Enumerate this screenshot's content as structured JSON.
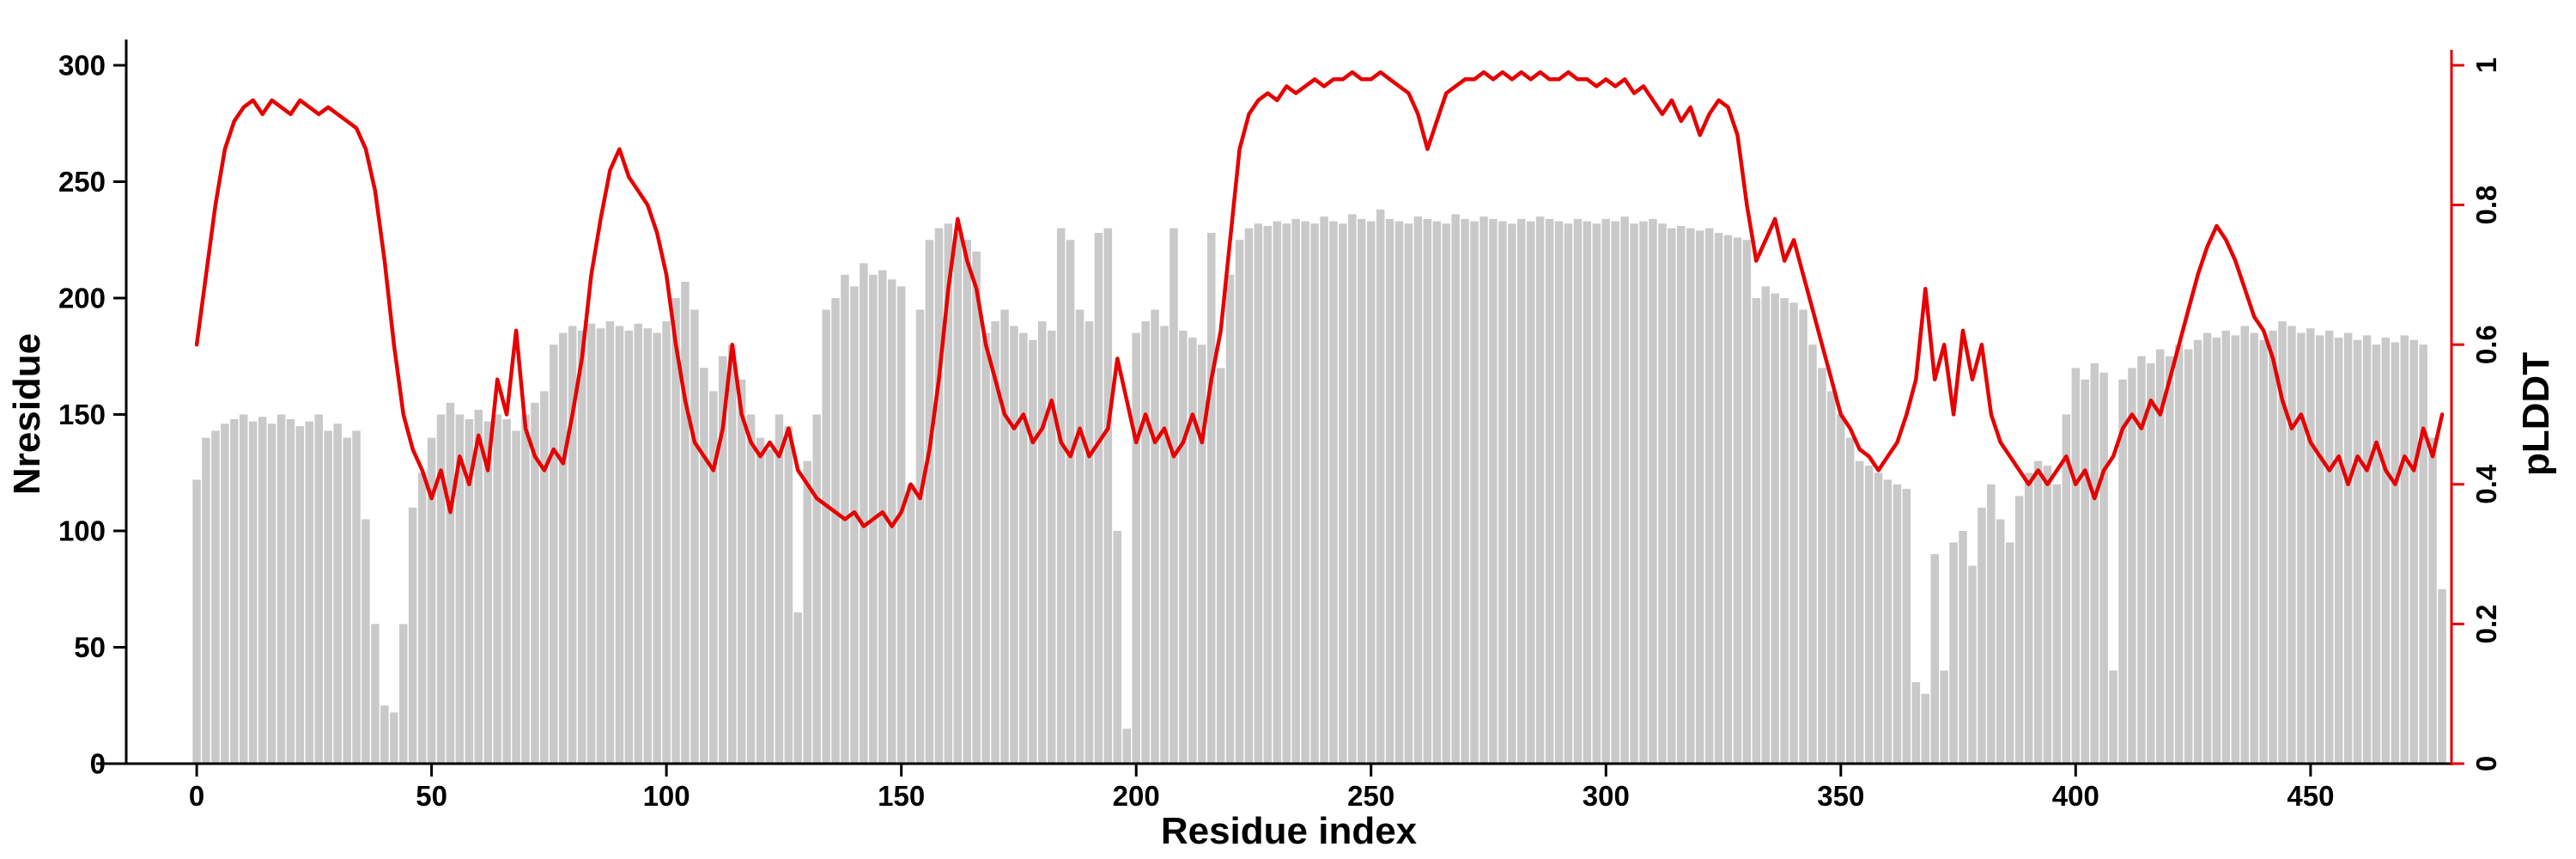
{
  "figure": {
    "background": "#ffffff",
    "bar_color": "#c9c9c9",
    "line_color": "#e60000",
    "axis_color": "#000000"
  },
  "chart_data": {
    "type": "bar+line",
    "title": "",
    "xlabel": "Residue index",
    "ylabel_left": "Nresidue",
    "ylabel_right": "pLDDT",
    "legend": "none",
    "grid": false,
    "x_axis": {
      "min": -15,
      "max": 480,
      "ticks": [
        0,
        50,
        100,
        150,
        200,
        250,
        300,
        350,
        400,
        450
      ]
    },
    "y_left_axis": {
      "min": 0,
      "max": 300,
      "ticks": [
        0,
        50,
        100,
        150,
        200,
        250,
        300
      ],
      "color": "#000000"
    },
    "y_right_axis": {
      "min": 0,
      "max": 1,
      "ticks": [
        0,
        0.2,
        0.4,
        0.6,
        0.8,
        1
      ],
      "tick_labels": [
        "0",
        "0.2",
        "0.4",
        "0.6",
        "0.8",
        "1"
      ],
      "color": "#e60000"
    },
    "x": {
      "start": 0,
      "step": 2,
      "count": 240
    },
    "series": [
      {
        "name": "Nresidue",
        "type": "bar",
        "axis": "left",
        "color": "#c9c9c9",
        "values": [
          122,
          140,
          143,
          146,
          148,
          150,
          147,
          149,
          146,
          150,
          148,
          145,
          147,
          150,
          143,
          146,
          140,
          143,
          105,
          60,
          25,
          22,
          60,
          110,
          125,
          140,
          150,
          155,
          150,
          148,
          152,
          147,
          150,
          148,
          143,
          150,
          155,
          160,
          180,
          185,
          188,
          186,
          189,
          187,
          190,
          188,
          186,
          189,
          187,
          185,
          190,
          200,
          207,
          195,
          170,
          160,
          175,
          180,
          165,
          150,
          140,
          135,
          150,
          145,
          65,
          130,
          150,
          195,
          200,
          210,
          205,
          215,
          210,
          212,
          208,
          205,
          120,
          195,
          225,
          230,
          232,
          228,
          225,
          220,
          185,
          190,
          195,
          188,
          185,
          182,
          190,
          186,
          230,
          225,
          195,
          190,
          228,
          230,
          100,
          15,
          185,
          190,
          195,
          188,
          230,
          186,
          183,
          180,
          228,
          170,
          210,
          225,
          230,
          232,
          231,
          233,
          232,
          234,
          233,
          232,
          235,
          233,
          232,
          236,
          234,
          233,
          238,
          234,
          233,
          232,
          235,
          234,
          233,
          232,
          236,
          234,
          233,
          235,
          234,
          233,
          232,
          234,
          233,
          235,
          234,
          233,
          232,
          234,
          233,
          232,
          234,
          233,
          235,
          232,
          233,
          234,
          232,
          230,
          231,
          230,
          229,
          230,
          228,
          227,
          226,
          225,
          200,
          205,
          202,
          200,
          198,
          195,
          180,
          170,
          160,
          150,
          140,
          130,
          128,
          125,
          122,
          120,
          118,
          35,
          30,
          90,
          40,
          95,
          100,
          85,
          110,
          120,
          105,
          95,
          115,
          125,
          130,
          128,
          120,
          150,
          170,
          165,
          172,
          168,
          40,
          165,
          170,
          175,
          172,
          178,
          175,
          180,
          178,
          182,
          185,
          183,
          186,
          184,
          188,
          185,
          182,
          186,
          190,
          188,
          185,
          187,
          184,
          186,
          183,
          185,
          182,
          184,
          180,
          183,
          181,
          184,
          182,
          180,
          140,
          75
        ]
      },
      {
        "name": "pLDDT",
        "type": "line",
        "axis": "right",
        "color": "#e60000",
        "values": [
          0.6,
          0.7,
          0.8,
          0.88,
          0.92,
          0.94,
          0.95,
          0.93,
          0.95,
          0.94,
          0.93,
          0.95,
          0.94,
          0.93,
          0.94,
          0.93,
          0.92,
          0.91,
          0.88,
          0.82,
          0.72,
          0.6,
          0.5,
          0.45,
          0.42,
          0.38,
          0.42,
          0.36,
          0.44,
          0.4,
          0.47,
          0.42,
          0.55,
          0.5,
          0.62,
          0.48,
          0.44,
          0.42,
          0.45,
          0.43,
          0.5,
          0.58,
          0.7,
          0.78,
          0.85,
          0.88,
          0.84,
          0.82,
          0.8,
          0.76,
          0.7,
          0.6,
          0.52,
          0.46,
          0.44,
          0.42,
          0.48,
          0.6,
          0.5,
          0.46,
          0.44,
          0.46,
          0.44,
          0.48,
          0.42,
          0.4,
          0.38,
          0.37,
          0.36,
          0.35,
          0.36,
          0.34,
          0.35,
          0.36,
          0.34,
          0.36,
          0.4,
          0.38,
          0.45,
          0.55,
          0.68,
          0.78,
          0.72,
          0.68,
          0.6,
          0.55,
          0.5,
          0.48,
          0.5,
          0.46,
          0.48,
          0.52,
          0.46,
          0.44,
          0.48,
          0.44,
          0.46,
          0.48,
          0.58,
          0.52,
          0.46,
          0.5,
          0.46,
          0.48,
          0.44,
          0.46,
          0.5,
          0.46,
          0.55,
          0.62,
          0.75,
          0.88,
          0.93,
          0.95,
          0.96,
          0.95,
          0.97,
          0.96,
          0.97,
          0.98,
          0.97,
          0.98,
          0.98,
          0.99,
          0.98,
          0.98,
          0.99,
          0.98,
          0.97,
          0.96,
          0.93,
          0.88,
          0.92,
          0.96,
          0.97,
          0.98,
          0.98,
          0.99,
          0.98,
          0.99,
          0.98,
          0.99,
          0.98,
          0.99,
          0.98,
          0.98,
          0.99,
          0.98,
          0.98,
          0.97,
          0.98,
          0.97,
          0.98,
          0.96,
          0.97,
          0.95,
          0.93,
          0.95,
          0.92,
          0.94,
          0.9,
          0.93,
          0.95,
          0.94,
          0.9,
          0.8,
          0.72,
          0.75,
          0.78,
          0.72,
          0.75,
          0.7,
          0.65,
          0.6,
          0.55,
          0.5,
          0.48,
          0.45,
          0.44,
          0.42,
          0.44,
          0.46,
          0.5,
          0.55,
          0.68,
          0.55,
          0.6,
          0.5,
          0.62,
          0.55,
          0.6,
          0.5,
          0.46,
          0.44,
          0.42,
          0.4,
          0.42,
          0.4,
          0.42,
          0.44,
          0.4,
          0.42,
          0.38,
          0.42,
          0.44,
          0.48,
          0.5,
          0.48,
          0.52,
          0.5,
          0.55,
          0.6,
          0.65,
          0.7,
          0.74,
          0.77,
          0.75,
          0.72,
          0.68,
          0.64,
          0.62,
          0.58,
          0.52,
          0.48,
          0.5,
          0.46,
          0.44,
          0.42,
          0.44,
          0.4,
          0.44,
          0.42,
          0.46,
          0.42,
          0.4,
          0.44,
          0.42,
          0.48,
          0.44,
          0.5
        ]
      }
    ]
  }
}
